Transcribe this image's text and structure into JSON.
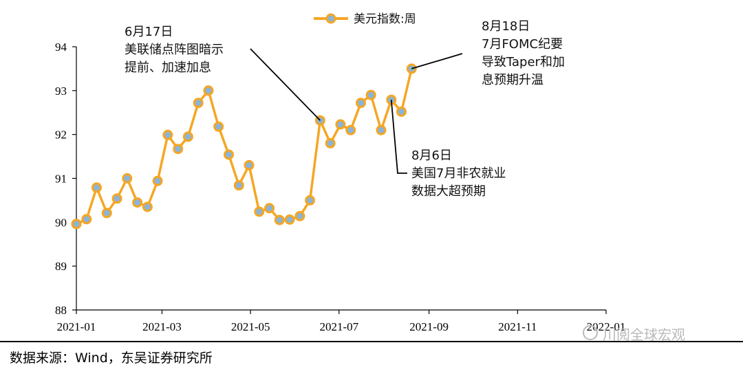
{
  "chart_data": {
    "type": "line",
    "legend_position": "top-center",
    "series": [
      {
        "name": "美元指数:周",
        "color": "#f5a623",
        "marker_fill": "#8ab4d8",
        "x": [
          "2021-01-01",
          "2021-01-08",
          "2021-01-15",
          "2021-01-22",
          "2021-01-29",
          "2021-02-05",
          "2021-02-12",
          "2021-02-19",
          "2021-02-26",
          "2021-03-05",
          "2021-03-12",
          "2021-03-19",
          "2021-03-26",
          "2021-04-02",
          "2021-04-09",
          "2021-04-16",
          "2021-04-23",
          "2021-04-30",
          "2021-05-07",
          "2021-05-14",
          "2021-05-21",
          "2021-05-28",
          "2021-06-04",
          "2021-06-11",
          "2021-06-18",
          "2021-06-25",
          "2021-07-02",
          "2021-07-09",
          "2021-07-16",
          "2021-07-23",
          "2021-07-30",
          "2021-08-06",
          "2021-08-13",
          "2021-08-20"
        ],
        "values": [
          89.96,
          90.07,
          90.79,
          90.21,
          90.54,
          91.0,
          90.45,
          90.35,
          90.94,
          91.99,
          91.67,
          91.95,
          92.72,
          93.0,
          92.18,
          91.54,
          90.84,
          91.3,
          90.24,
          90.32,
          90.05,
          90.06,
          90.14,
          90.5,
          92.32,
          91.8,
          92.23,
          92.1,
          92.72,
          92.9,
          92.1,
          92.79,
          92.52,
          93.5
        ]
      }
    ],
    "ylim": [
      88,
      94
    ],
    "yticks": [
      "88",
      "89",
      "90",
      "91",
      "92",
      "93",
      "94"
    ],
    "xlim": [
      "2021-01-01",
      "2022-01-01"
    ],
    "xticks": [
      {
        "label": "2021-01",
        "date": "2021-01-01"
      },
      {
        "label": "2021-03",
        "date": "2021-03-01"
      },
      {
        "label": "2021-05",
        "date": "2021-05-01"
      },
      {
        "label": "2021-07",
        "date": "2021-07-01"
      },
      {
        "label": "2021-09",
        "date": "2021-09-01"
      },
      {
        "label": "2021-11",
        "date": "2021-11-01"
      },
      {
        "label": "2022-01",
        "date": "2022-01-01"
      }
    ],
    "grid": false,
    "annotations": [
      {
        "lines": [
          "6月17日",
          "美联储点阵图暗示",
          "提前、加速加息"
        ],
        "point_index": 24
      },
      {
        "lines": [
          "8月18日",
          "7月FOMC纪要",
          "导致Taper和加",
          "息预期升温"
        ],
        "point_index": 33
      },
      {
        "lines": [
          "8月6日",
          "美国7月非农就业",
          "数据大超预期"
        ],
        "point_index": 31
      }
    ]
  },
  "footer": {
    "source": "数据来源：Wind，东吴证券研究所"
  },
  "watermark": {
    "text": "川阅全球宏观"
  }
}
